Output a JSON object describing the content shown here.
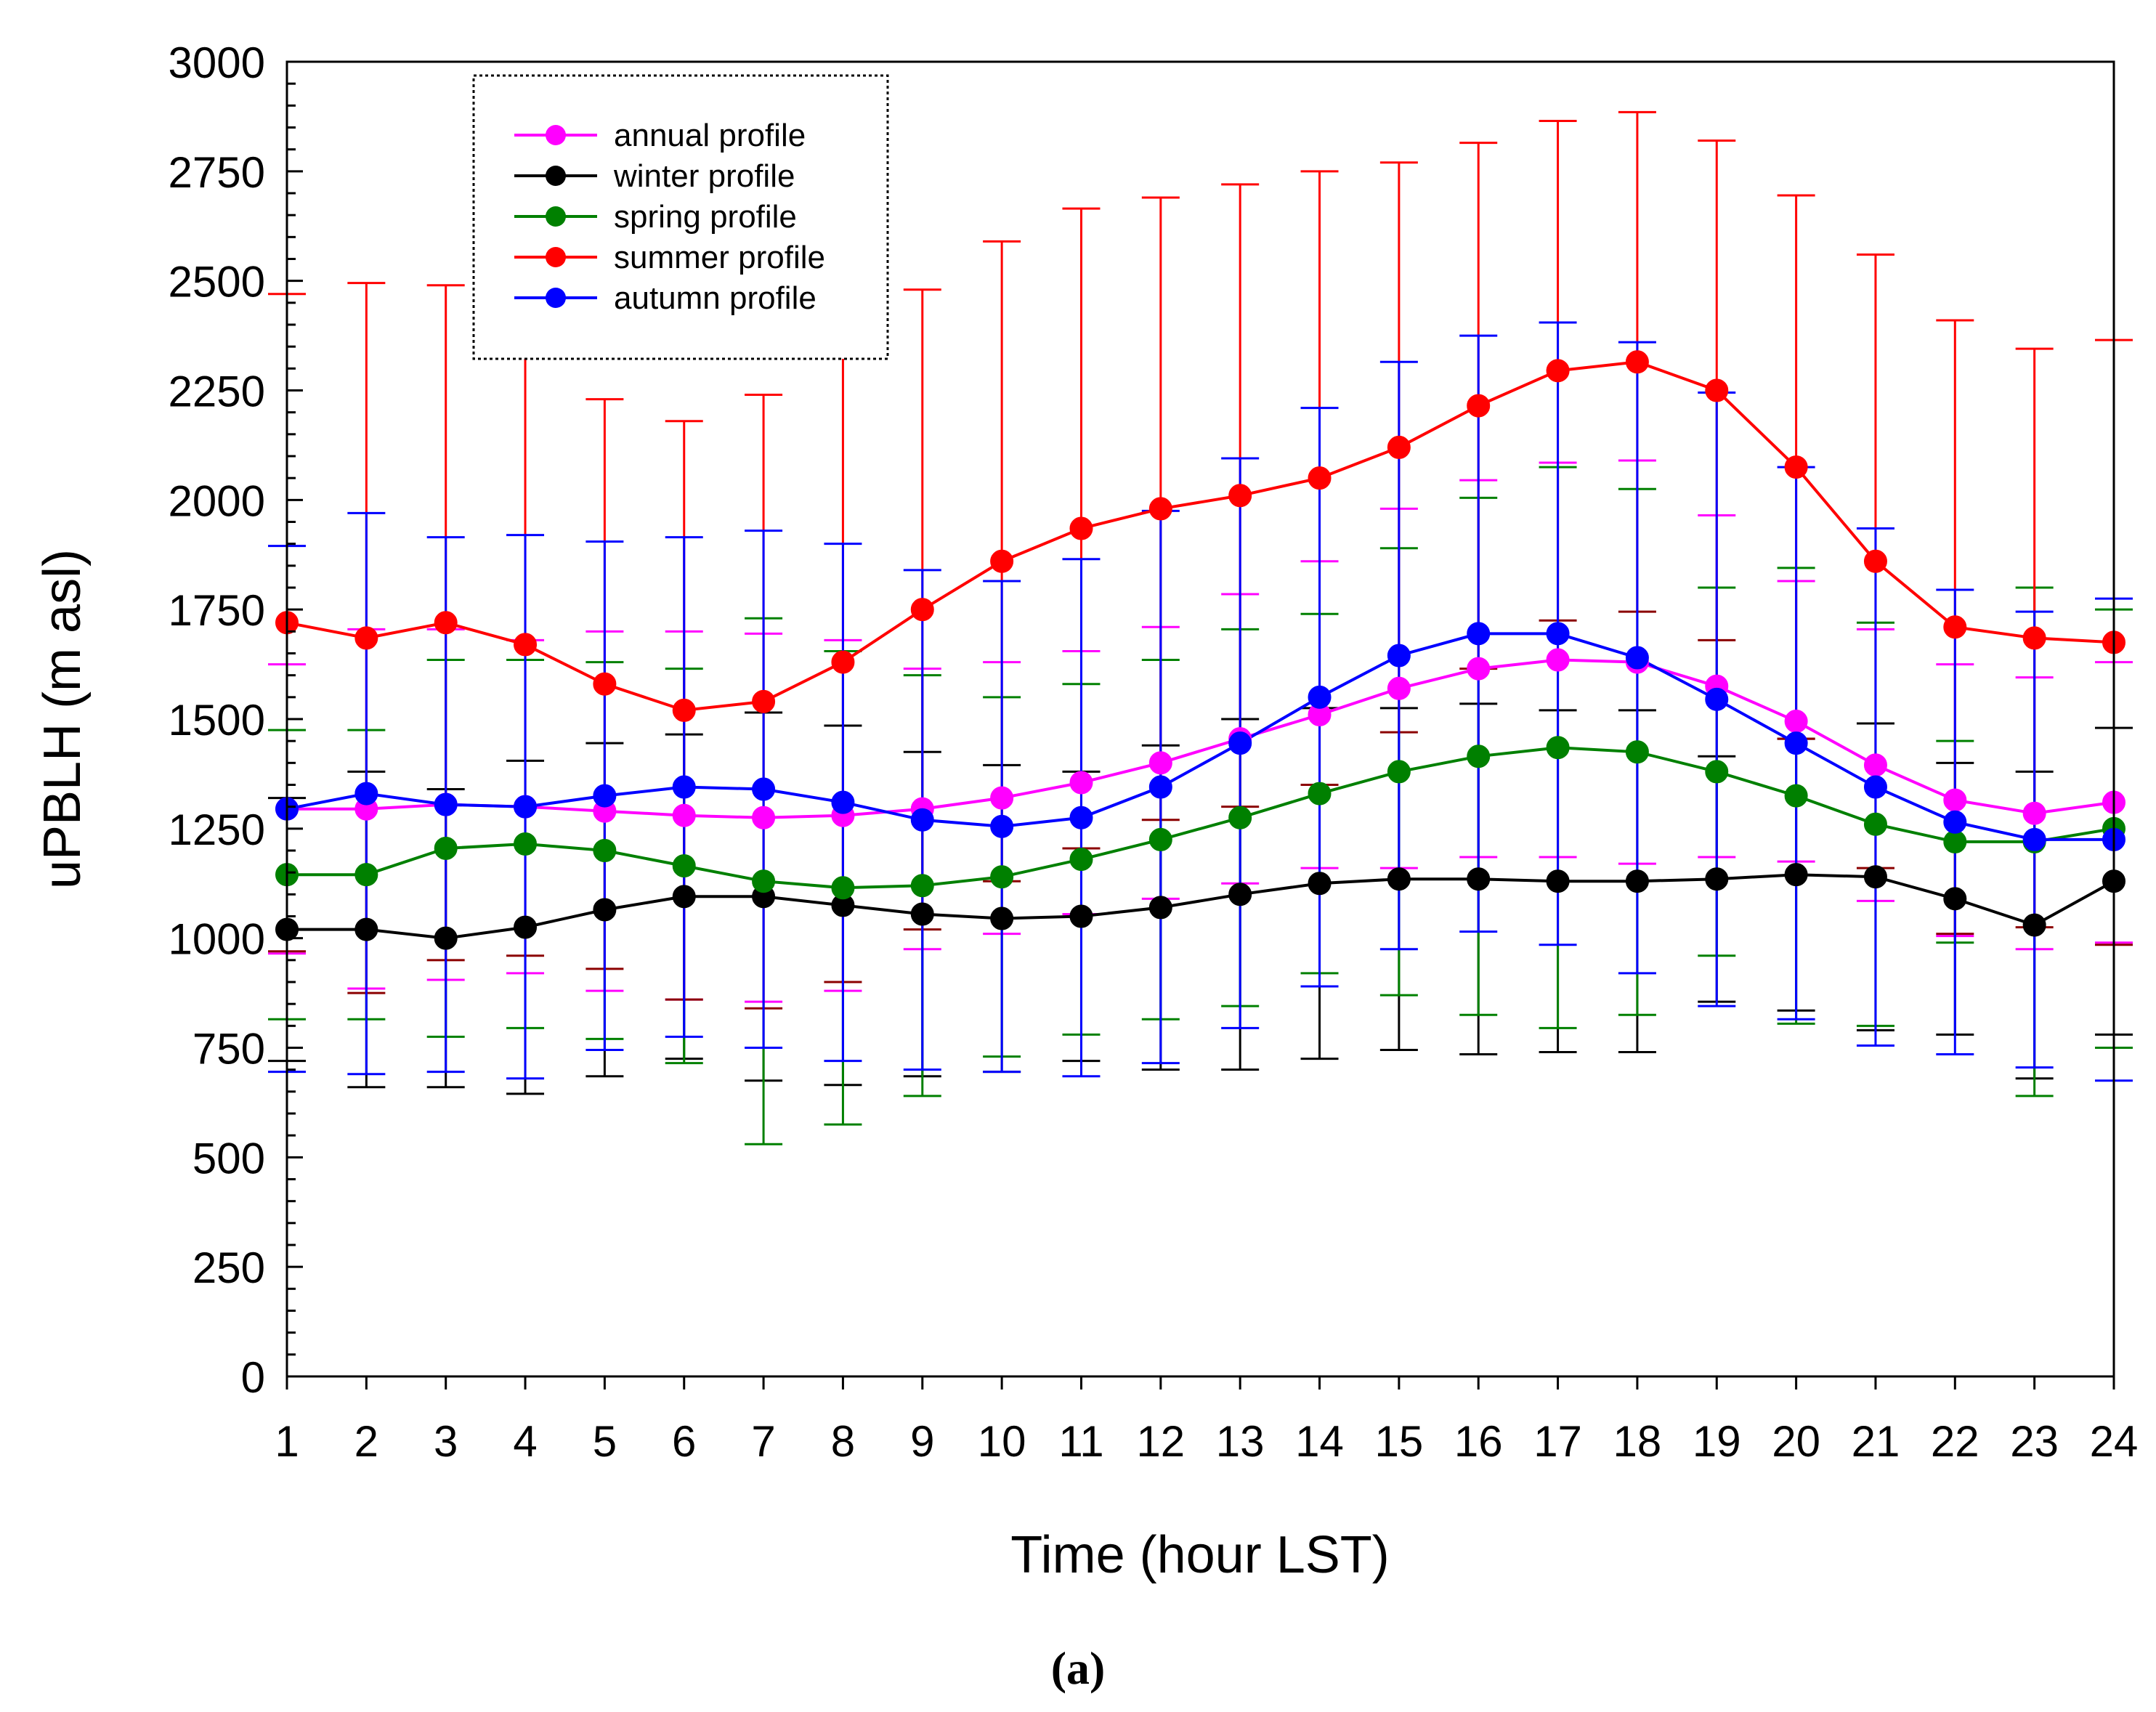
{
  "chart_data": {
    "type": "line",
    "title": "",
    "xlabel": "Time (hour LST)",
    "ylabel": "uPBLH (m asl)",
    "xlim": [
      1,
      24
    ],
    "ylim": [
      0,
      3000
    ],
    "x": [
      1,
      2,
      3,
      4,
      5,
      6,
      7,
      8,
      9,
      10,
      11,
      12,
      13,
      14,
      15,
      16,
      17,
      18,
      19,
      20,
      21,
      22,
      23,
      24
    ],
    "x_tick_labels": [
      "1",
      "2",
      "3",
      "4",
      "5",
      "6",
      "7",
      "8",
      "9",
      "10",
      "11",
      "12",
      "13",
      "14",
      "15",
      "16",
      "17",
      "18",
      "19",
      "20",
      "21",
      "22",
      "23",
      "24"
    ],
    "y_ticks": [
      0,
      250,
      500,
      750,
      1000,
      1250,
      1500,
      1750,
      2000,
      2250,
      2500,
      2750,
      3000
    ],
    "y_tick_labels": [
      "0",
      "250",
      "500",
      "750",
      "1000",
      "1250",
      "1500",
      "1750",
      "2000",
      "2250",
      "2500",
      "2750",
      "3000"
    ],
    "grid": false,
    "legend_position": "top-left",
    "series": [
      {
        "name": "annual profile",
        "color": "#ff00ff",
        "values": [
          1295,
          1295,
          1305,
          1300,
          1290,
          1280,
          1275,
          1280,
          1295,
          1320,
          1355,
          1400,
          1455,
          1510,
          1570,
          1615,
          1635,
          1630,
          1575,
          1495,
          1395,
          1315,
          1285,
          1310
        ],
        "error": [
          330,
          410,
          400,
          380,
          410,
          420,
          420,
          400,
          320,
          310,
          300,
          310,
          330,
          350,
          410,
          430,
          450,
          460,
          390,
          320,
          310,
          310,
          310,
          320
        ]
      },
      {
        "name": "winter profile",
        "color": "#000000",
        "values": [
          1020,
          1020,
          1000,
          1025,
          1065,
          1095,
          1095,
          1075,
          1055,
          1045,
          1050,
          1070,
          1100,
          1125,
          1135,
          1135,
          1130,
          1130,
          1135,
          1145,
          1140,
          1090,
          1030,
          1130
        ],
        "error": [
          300,
          360,
          340,
          380,
          380,
          370,
          420,
          410,
          370,
          350,
          330,
          370,
          400,
          400,
          390,
          400,
          390,
          390,
          280,
          310,
          350,
          310,
          350,
          350
        ]
      },
      {
        "name": "spring profile",
        "color": "#008000",
        "values": [
          1145,
          1145,
          1205,
          1215,
          1200,
          1165,
          1130,
          1115,
          1120,
          1140,
          1180,
          1225,
          1275,
          1330,
          1380,
          1415,
          1435,
          1425,
          1380,
          1325,
          1260,
          1220,
          1220,
          1250
        ],
        "error": [
          330,
          330,
          430,
          420,
          430,
          450,
          600,
          540,
          480,
          410,
          400,
          410,
          430,
          410,
          510,
          590,
          640,
          600,
          420,
          520,
          460,
          230,
          580,
          500
        ]
      },
      {
        "name": "summer profile",
        "color": "#ff0000",
        "values": [
          1720,
          1685,
          1720,
          1670,
          1580,
          1520,
          1540,
          1630,
          1750,
          1860,
          1935,
          1980,
          2010,
          2050,
          2120,
          2215,
          2295,
          2315,
          2250,
          2075,
          1860,
          1710,
          1685,
          1675
        ],
        "error": [
          750,
          810,
          770,
          710,
          650,
          660,
          700,
          730,
          730,
          730,
          730,
          710,
          710,
          700,
          650,
          600,
          570,
          570,
          570,
          620,
          700,
          700,
          660,
          690
        ]
      },
      {
        "name": "autumn profile",
        "color": "#0000ff",
        "values": [
          1295,
          1330,
          1305,
          1300,
          1325,
          1345,
          1340,
          1310,
          1270,
          1255,
          1275,
          1345,
          1445,
          1550,
          1645,
          1695,
          1695,
          1640,
          1545,
          1445,
          1345,
          1265,
          1225,
          1225
        ],
        "error": [
          600,
          640,
          610,
          620,
          580,
          570,
          590,
          590,
          570,
          560,
          590,
          630,
          650,
          660,
          670,
          680,
          710,
          720,
          700,
          630,
          590,
          530,
          520,
          550
        ]
      }
    ],
    "annotations": [
      "(a)"
    ]
  }
}
